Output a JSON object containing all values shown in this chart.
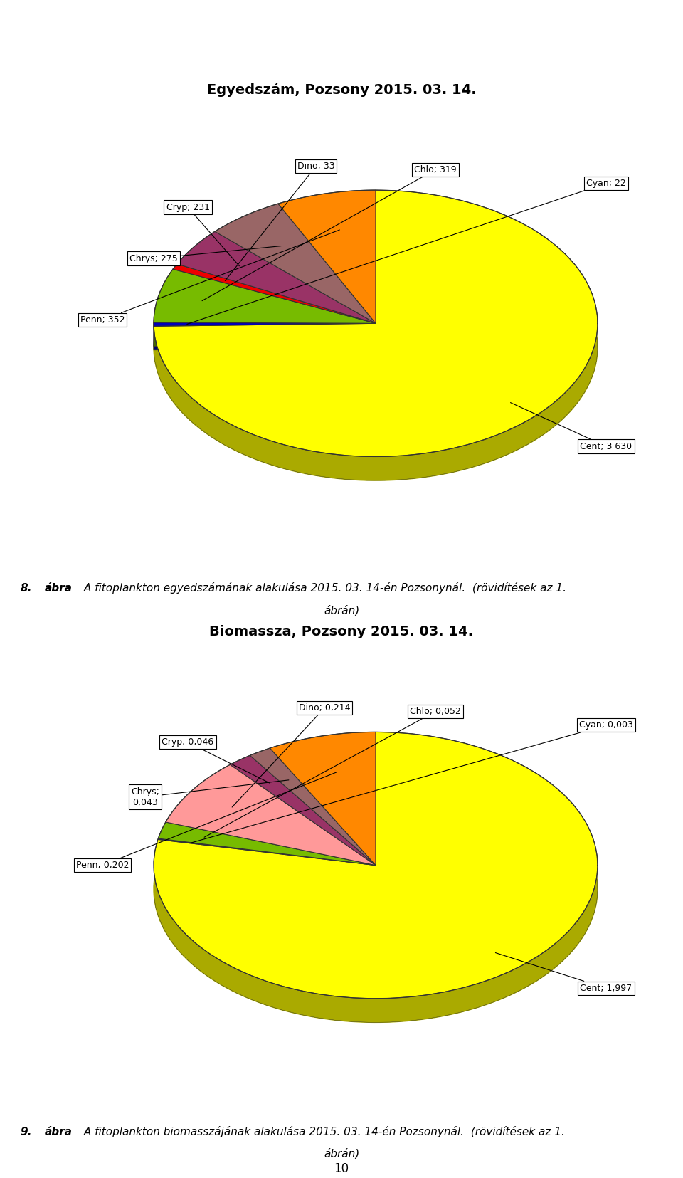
{
  "chart1": {
    "title": "Egyedszám, Pozsony 2015. 03. 14.",
    "labels": [
      "Cent",
      "Cyan",
      "Chlo",
      "Dino",
      "Cryp",
      "Chrys",
      "Penn"
    ],
    "values": [
      3630,
      22,
      319,
      33,
      231,
      275,
      352
    ],
    "colors": [
      "#FFFF00",
      "#0000BB",
      "#77BB00",
      "#EE0000",
      "#993366",
      "#996666",
      "#FF8800"
    ],
    "label_texts": [
      "Cent; 3 630",
      "Cyan; 22",
      "Chlo; 319",
      "Dino; 33",
      "Cryp; 231",
      "Chrys; 275",
      "Penn; 352"
    ],
    "shadow_colors": [
      "#AAAA00",
      "#000066",
      "#446600",
      "#880000",
      "#661133",
      "#664444",
      "#994400"
    ]
  },
  "chart2": {
    "title": "Biomassza, Pozsony 2015. 03. 14.",
    "labels": [
      "Cent",
      "Cyan",
      "Chlo",
      "Dino",
      "Cryp",
      "Chrys",
      "Penn"
    ],
    "values": [
      1.997,
      0.003,
      0.052,
      0.214,
      0.046,
      0.043,
      0.202
    ],
    "colors": [
      "#FFFF00",
      "#0000BB",
      "#77BB00",
      "#FF9999",
      "#993366",
      "#996666",
      "#FF8800"
    ],
    "label_texts": [
      "Cent; 1,997",
      "Cyan; 0,003",
      "Chlo; 0,052",
      "Dino; 0,214",
      "Cryp; 0,046",
      "Chrys;\n0,043",
      "Penn; 0,202"
    ],
    "shadow_colors": [
      "#AAAA00",
      "#000066",
      "#446600",
      "#CC6666",
      "#661133",
      "#664444",
      "#994400"
    ]
  },
  "page_number": "10",
  "background_color": "#FFFFFF",
  "cap1_bold": "8. ábra",
  "cap1_italic": " A fitoplankton egyedszámának alakulása 2015. 03. 14-én Pozsonynál.  (rövidítések az 1.",
  "cap1_line2": "ábrán)",
  "cap2_bold": "9. ábra",
  "cap2_italic": " A fitoplankton biomasszájának alakulása 2015. 03. 14-én Pozsonynál.  (rövidítések az 1.",
  "cap2_line2": "ábrán)"
}
